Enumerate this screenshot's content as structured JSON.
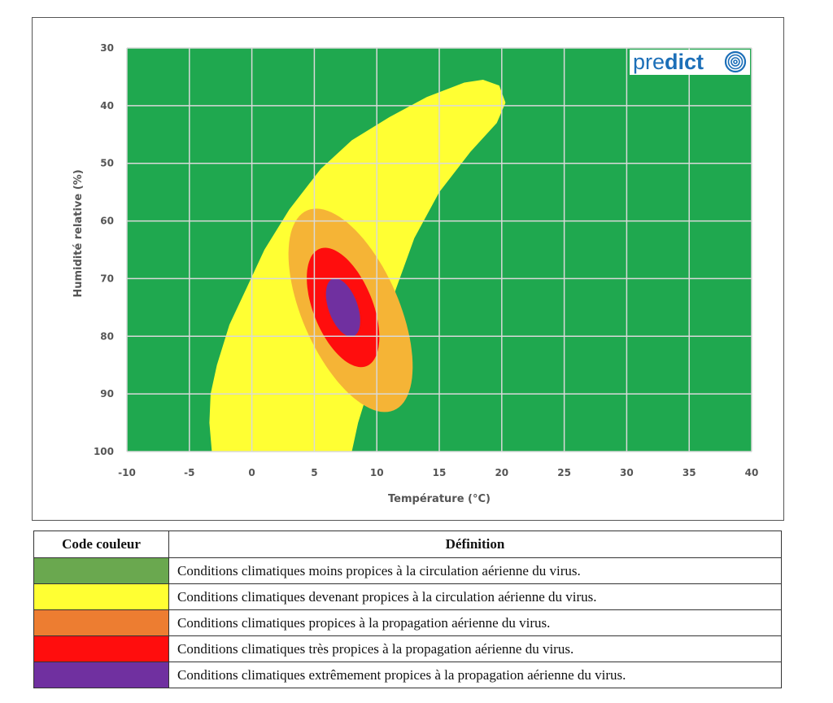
{
  "chart_data": {
    "type": "heatmap",
    "title": "",
    "xlabel": "Température (°C)",
    "ylabel": "Humidité relative (%)",
    "xlim": [
      -10,
      40
    ],
    "ylim": [
      30,
      100
    ],
    "y_inverted": true,
    "x_ticks": [
      "-10",
      "-5",
      "0",
      "5",
      "10",
      "15",
      "20",
      "25",
      "30",
      "35",
      "40"
    ],
    "y_ticks": [
      "30",
      "40",
      "50",
      "60",
      "70",
      "80",
      "90",
      "100"
    ],
    "grid": true,
    "background_color": "#1fa84f",
    "regions": [
      {
        "level": "yellow",
        "color": "#ffff33",
        "boundary": [
          [
            -3.2,
            100
          ],
          [
            -3.4,
            95
          ],
          [
            -3.3,
            90
          ],
          [
            -2.8,
            85
          ],
          [
            -1.8,
            78
          ],
          [
            -0.5,
            72
          ],
          [
            1,
            65
          ],
          [
            3,
            58
          ],
          [
            5.5,
            51
          ],
          [
            8,
            46
          ],
          [
            11,
            42
          ],
          [
            14,
            38.5
          ],
          [
            17,
            36
          ],
          [
            18.5,
            35.5
          ],
          [
            19.8,
            36.5
          ],
          [
            20.3,
            39.5
          ],
          [
            19.6,
            43
          ],
          [
            17.5,
            48
          ],
          [
            15,
            55
          ],
          [
            13,
            63
          ],
          [
            11.5,
            72
          ],
          [
            10.5,
            80
          ],
          [
            9.5,
            88
          ],
          [
            8.5,
            95
          ],
          [
            8,
            100
          ]
        ]
      },
      {
        "level": "orange",
        "color": "#f5b436",
        "center": [
          7.9,
          75.5
        ],
        "semi_axis_major": 19,
        "semi_axis_minor": 4.3,
        "tilt_deg": 22
      },
      {
        "level": "red",
        "color": "#ff0d0d",
        "center": [
          7.3,
          75
        ],
        "semi_axis_major": 11,
        "semi_axis_minor": 2.6,
        "tilt_deg": 20
      },
      {
        "level": "purple",
        "color": "#7030a0",
        "center": [
          7.3,
          75
        ],
        "semi_axis_major": 5.3,
        "semi_axis_minor": 1.25,
        "tilt_deg": 18
      }
    ]
  },
  "logo": {
    "text_light": "pre",
    "text_bold": "dict",
    "color": "#1c6fb8"
  },
  "legend_table": {
    "header_code": "Code couleur",
    "header_definition": "Définition",
    "rows": [
      {
        "color": "#6aa84f",
        "definition": "Conditions climatiques moins propices à la circulation aérienne du virus."
      },
      {
        "color": "#ffff33",
        "definition": "Conditions climatiques devenant propices à la circulation aérienne du virus."
      },
      {
        "color": "#ed7d31",
        "definition": "Conditions climatiques propices à la propagation aérienne du virus."
      },
      {
        "color": "#ff0d0d",
        "definition": "Conditions climatiques très propices à la propagation aérienne du virus."
      },
      {
        "color": "#7030a0",
        "definition": "Conditions climatiques extrêmement propices à la propagation aérienne du virus."
      }
    ]
  }
}
